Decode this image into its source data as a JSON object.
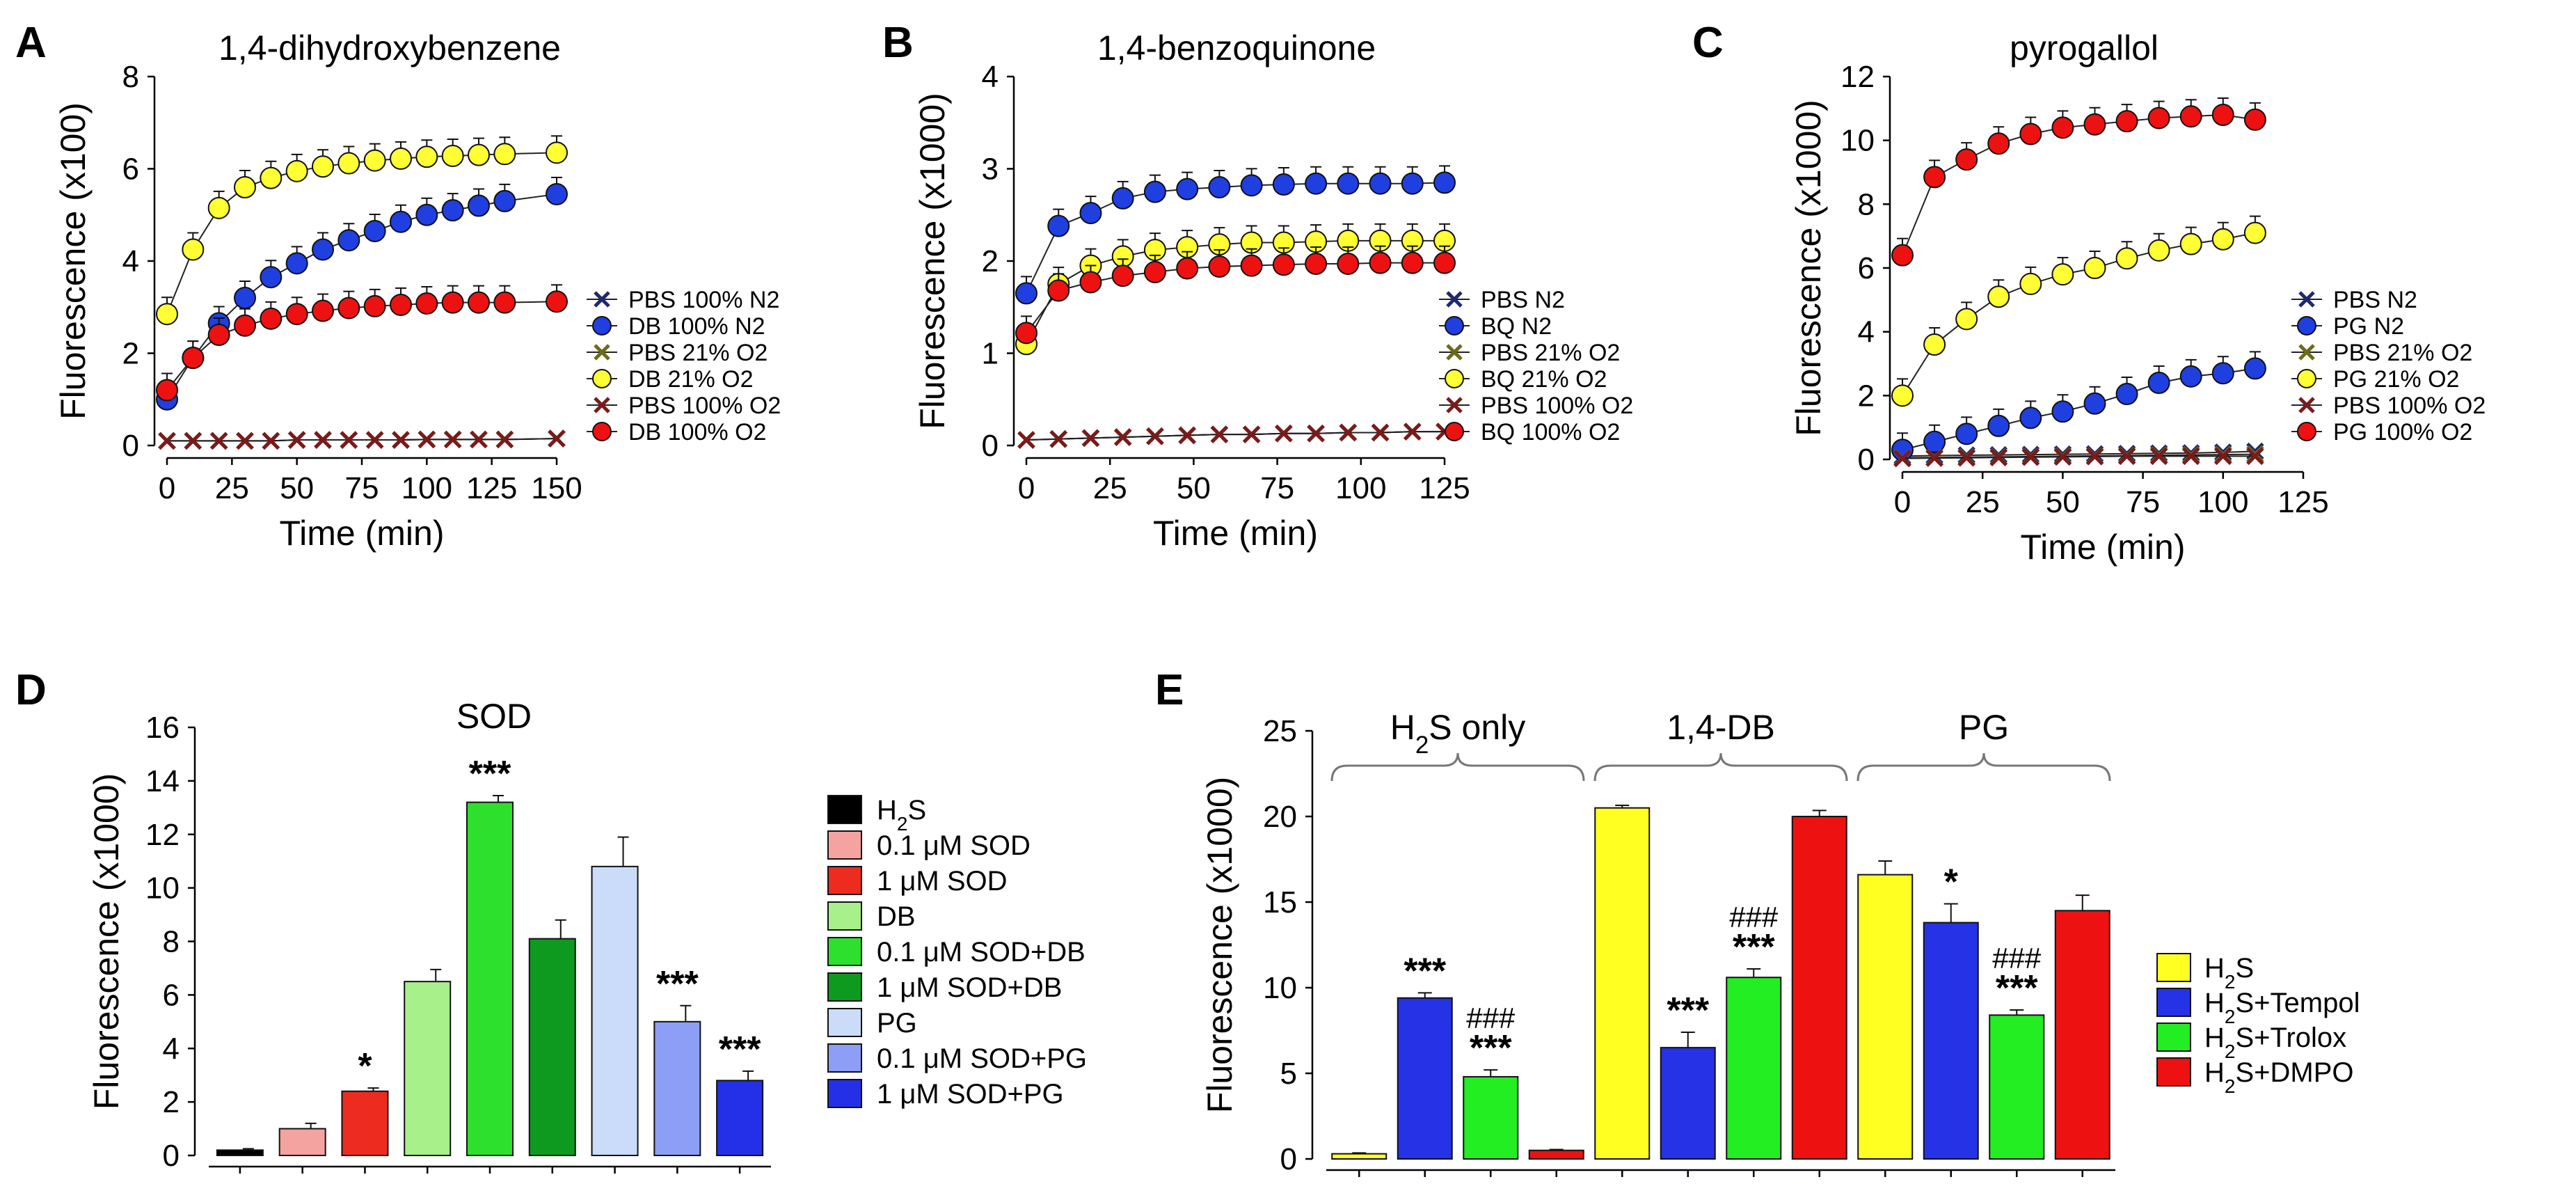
{
  "chart_data": [
    {
      "panel": "A",
      "type": "line",
      "title": "1,4-dihydroxybenzene",
      "xlabel": "Time (min)",
      "ylabel": "Fluorescence (x100)",
      "xlim": [
        0,
        150
      ],
      "ylim": [
        0,
        8
      ],
      "xticks": [
        "0",
        "25",
        "50",
        "75",
        "100",
        "125",
        "150"
      ],
      "yticks": [
        "0",
        "2",
        "4",
        "6",
        "8"
      ],
      "x": [
        0,
        10,
        20,
        30,
        40,
        50,
        60,
        70,
        80,
        90,
        100,
        110,
        120,
        130,
        150
      ],
      "series": [
        {
          "name": "PBS 100% N2",
          "marker": "x",
          "color": "#1f2a6b",
          "values": [
            0.1,
            0.1,
            0.1,
            0.1,
            0.1,
            0.12,
            0.12,
            0.12,
            0.12,
            0.12,
            0.13,
            0.13,
            0.13,
            0.13,
            0.15
          ]
        },
        {
          "name": "DB 100% N2",
          "marker": "circle",
          "color": "#1f3fe0",
          "values": [
            1.0,
            1.9,
            2.65,
            3.2,
            3.65,
            3.95,
            4.25,
            4.45,
            4.65,
            4.85,
            5.0,
            5.1,
            5.2,
            5.3,
            5.45
          ]
        },
        {
          "name": "PBS 21% O2",
          "marker": "x",
          "color": "#6b6b1a",
          "values": [
            0.1,
            0.1,
            0.1,
            0.1,
            0.1,
            0.12,
            0.12,
            0.12,
            0.12,
            0.12,
            0.13,
            0.13,
            0.13,
            0.13,
            0.15
          ]
        },
        {
          "name": "DB 21% O2",
          "marker": "circle",
          "color": "#ffff33",
          "values": [
            2.85,
            4.25,
            5.15,
            5.6,
            5.8,
            5.95,
            6.05,
            6.12,
            6.18,
            6.22,
            6.26,
            6.28,
            6.3,
            6.32,
            6.35
          ]
        },
        {
          "name": "PBS 100% O2",
          "marker": "x",
          "color": "#7b1a1a",
          "values": [
            0.1,
            0.1,
            0.1,
            0.1,
            0.1,
            0.12,
            0.12,
            0.12,
            0.12,
            0.12,
            0.13,
            0.13,
            0.13,
            0.13,
            0.15
          ]
        },
        {
          "name": "DB 100% O2",
          "marker": "circle",
          "color": "#ee1111",
          "values": [
            1.2,
            1.9,
            2.4,
            2.6,
            2.75,
            2.85,
            2.92,
            2.98,
            3.02,
            3.05,
            3.08,
            3.1,
            3.1,
            3.1,
            3.12
          ]
        }
      ]
    },
    {
      "panel": "B",
      "type": "line",
      "title": "1,4-benzoquinone",
      "xlabel": "Time (min)",
      "ylabel": "Fluorescence (x1000)",
      "xlim": [
        0,
        130
      ],
      "ylim": [
        0,
        4
      ],
      "xticks": [
        "0",
        "25",
        "50",
        "75",
        "100",
        "125"
      ],
      "yticks": [
        "0",
        "1",
        "2",
        "3",
        "4"
      ],
      "x": [
        0,
        10,
        20,
        30,
        40,
        50,
        60,
        70,
        80,
        90,
        100,
        110,
        120,
        130
      ],
      "series": [
        {
          "name": "PBS  N2",
          "marker": "x",
          "color": "#1f2a6b",
          "values": [
            0.06,
            0.07,
            0.08,
            0.09,
            0.1,
            0.11,
            0.12,
            0.12,
            0.13,
            0.13,
            0.14,
            0.14,
            0.15,
            0.15
          ]
        },
        {
          "name": "BQ  N2",
          "marker": "circle",
          "color": "#1f3fe0",
          "values": [
            1.65,
            2.38,
            2.52,
            2.68,
            2.75,
            2.78,
            2.8,
            2.82,
            2.83,
            2.84,
            2.84,
            2.84,
            2.84,
            2.85
          ]
        },
        {
          "name": "PBS  21% O2",
          "marker": "x",
          "color": "#6b6b1a",
          "values": [
            0.06,
            0.07,
            0.08,
            0.09,
            0.1,
            0.11,
            0.12,
            0.12,
            0.13,
            0.13,
            0.14,
            0.14,
            0.15,
            0.15
          ]
        },
        {
          "name": "BQ  21% O2",
          "marker": "circle",
          "color": "#ffff33",
          "values": [
            1.1,
            1.75,
            1.95,
            2.05,
            2.12,
            2.15,
            2.18,
            2.2,
            2.2,
            2.21,
            2.22,
            2.22,
            2.22,
            2.22
          ]
        },
        {
          "name": "PBS  100% O2",
          "marker": "x",
          "color": "#7b1a1a",
          "values": [
            0.06,
            0.07,
            0.08,
            0.09,
            0.1,
            0.11,
            0.12,
            0.12,
            0.13,
            0.13,
            0.14,
            0.14,
            0.15,
            0.15
          ]
        },
        {
          "name": "BQ  100% O2",
          "marker": "circle",
          "color": "#ee1111",
          "values": [
            1.22,
            1.68,
            1.77,
            1.84,
            1.88,
            1.92,
            1.94,
            1.95,
            1.96,
            1.97,
            1.97,
            1.98,
            1.98,
            1.98
          ]
        }
      ]
    },
    {
      "panel": "C",
      "type": "line",
      "title": "pyrogallol",
      "xlabel": "Time (min)",
      "ylabel": "Fluorescence (x1000)",
      "xlim": [
        0,
        125
      ],
      "ylim": [
        0,
        12
      ],
      "xticks": [
        "0",
        "25",
        "50",
        "75",
        "100",
        "125"
      ],
      "yticks": [
        "0",
        "2",
        "4",
        "6",
        "8",
        "10",
        "12"
      ],
      "x": [
        0,
        10,
        20,
        30,
        40,
        50,
        60,
        70,
        80,
        90,
        100,
        110
      ],
      "series": [
        {
          "name": "PBS N2",
          "marker": "x",
          "color": "#1f2a6b",
          "values": [
            0.1,
            0.12,
            0.13,
            0.14,
            0.15,
            0.16,
            0.17,
            0.18,
            0.19,
            0.2,
            0.22,
            0.25
          ]
        },
        {
          "name": "PG N2",
          "marker": "circle",
          "color": "#1f3fe0",
          "values": [
            0.3,
            0.55,
            0.8,
            1.05,
            1.3,
            1.5,
            1.75,
            2.05,
            2.4,
            2.6,
            2.7,
            2.85
          ]
        },
        {
          "name": "PBS 21% O2",
          "marker": "x",
          "color": "#6b6b1a",
          "values": [
            0.05,
            0.06,
            0.07,
            0.08,
            0.09,
            0.1,
            0.11,
            0.12,
            0.13,
            0.14,
            0.15,
            0.16
          ]
        },
        {
          "name": "PG 21% O2",
          "marker": "circle",
          "color": "#ffff33",
          "values": [
            2.0,
            3.6,
            4.4,
            5.1,
            5.5,
            5.8,
            6.0,
            6.3,
            6.55,
            6.75,
            6.9,
            7.1
          ]
        },
        {
          "name": "PBS 100% O2",
          "marker": "x",
          "color": "#7b1a1a",
          "values": [
            0.03,
            0.04,
            0.05,
            0.06,
            0.07,
            0.08,
            0.09,
            0.1,
            0.1,
            0.1,
            0.1,
            0.1
          ]
        },
        {
          "name": "PG 100% O2",
          "marker": "circle",
          "color": "#ee1111",
          "values": [
            6.4,
            8.85,
            9.4,
            9.9,
            10.2,
            10.4,
            10.5,
            10.6,
            10.7,
            10.75,
            10.8,
            10.65
          ]
        }
      ]
    },
    {
      "panel": "D",
      "type": "bar",
      "title": "SOD",
      "xlabel": "",
      "ylabel": "Fluorescence (x1000)",
      "ylim": [
        0,
        16
      ],
      "yticks": [
        "0",
        "2",
        "4",
        "6",
        "8",
        "10",
        "12",
        "14",
        "16"
      ],
      "bars": [
        {
          "name": "H2S",
          "legend_main": "H",
          "legend_sub": "2",
          "legend_tail": "S",
          "value": 0.2,
          "err": 0.05,
          "color": "#000000",
          "annot": ""
        },
        {
          "name": "0.1 μM SOD",
          "legend_main": "0.1 μM SOD",
          "value": 1.0,
          "err": 0.2,
          "color": "#f4a3a0",
          "annot": ""
        },
        {
          "name": "1 μM SOD",
          "legend_main": "1 μM SOD",
          "value": 2.4,
          "err": 0.12,
          "color": "#ee2b1f",
          "annot": "*"
        },
        {
          "name": "DB",
          "legend_main": "DB",
          "value": 6.5,
          "err": 0.45,
          "color": "#a8f08a",
          "annot": ""
        },
        {
          "name": "0.1 μM SOD+DB",
          "legend_main": "0.1 μM SOD+DB",
          "value": 13.2,
          "err": 0.25,
          "color": "#2ee02e",
          "annot": "***"
        },
        {
          "name": "1 μM SOD+DB",
          "legend_main": "1 μM SOD+DB",
          "value": 8.1,
          "err": 0.7,
          "color": "#0e9a1e",
          "annot": ""
        },
        {
          "name": "PG",
          "legend_main": "PG",
          "value": 10.8,
          "err": 1.1,
          "color": "#cadcf8",
          "annot": ""
        },
        {
          "name": "0.1 μM SOD+PG",
          "legend_main": "0.1 μM SOD+PG",
          "value": 5.0,
          "err": 0.6,
          "color": "#8c9ef5",
          "annot": "***"
        },
        {
          "name": "1 μM SOD+PG",
          "legend_main": "1 μM SOD+PG",
          "value": 2.8,
          "err": 0.35,
          "color": "#2430e8",
          "annot": "***"
        }
      ]
    },
    {
      "panel": "E",
      "type": "bar",
      "title": "",
      "xlabel": "",
      "ylabel": "Fluorescence (x1000)",
      "ylim": [
        0,
        25
      ],
      "yticks": [
        "0",
        "5",
        "10",
        "15",
        "20",
        "25"
      ],
      "groups": [
        {
          "label": "H2S only",
          "label_main": "H",
          "label_sub": "2",
          "label_tail": "S only"
        },
        {
          "label": "1,4-DB",
          "label_main": "1,4-DB"
        },
        {
          "label": "PG",
          "label_main": "PG"
        }
      ],
      "series": [
        {
          "name": "H2S",
          "legend_main": "H",
          "legend_sub": "2",
          "legend_tail": "S",
          "color": "#ffff22"
        },
        {
          "name": "H2S+Tempol",
          "legend_main": "H",
          "legend_sub": "2",
          "legend_tail": "S+Tempol",
          "color": "#2532e6"
        },
        {
          "name": "H2S+Trolox",
          "legend_main": "H",
          "legend_sub": "2",
          "legend_tail": "S+Trolox",
          "color": "#22ee22"
        },
        {
          "name": "H2S+DMPO",
          "legend_main": "H",
          "legend_sub": "2",
          "legend_tail": "S+DMPO",
          "color": "#ee1111"
        }
      ],
      "values": [
        [
          0.3,
          9.4,
          4.8,
          0.5
        ],
        [
          20.5,
          6.5,
          10.6,
          20.0
        ],
        [
          16.6,
          13.8,
          8.4,
          14.5
        ]
      ],
      "errors": [
        [
          0.05,
          0.3,
          0.4,
          0.05
        ],
        [
          0.15,
          0.9,
          0.5,
          0.35
        ],
        [
          0.8,
          1.1,
          0.3,
          0.9
        ]
      ],
      "annotations": [
        [
          "",
          "***",
          "###\n***",
          ""
        ],
        [
          "",
          "***",
          "###\n***",
          ""
        ],
        [
          "",
          "*",
          "###\n***",
          ""
        ]
      ]
    }
  ]
}
